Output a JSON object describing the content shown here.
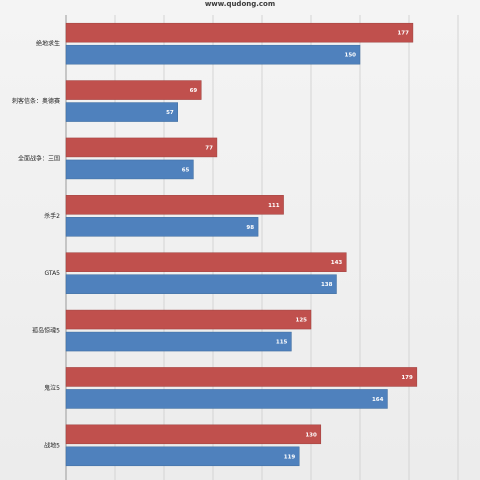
{
  "watermark": "www.qudong.com",
  "chart_data": {
    "type": "bar",
    "orientation": "horizontal",
    "categories": [
      "绝地求生",
      "刺客信条：奥德赛",
      "全面战争：三国",
      "杀手2",
      "GTA5",
      "孤岛惊魂5",
      "鬼泣5",
      "战地5"
    ],
    "series": [
      {
        "values": [
          177,
          69,
          77,
          111,
          143,
          125,
          179,
          130
        ],
        "color": "#c0504d"
      },
      {
        "values": [
          150,
          57,
          65,
          98,
          138,
          115,
          164,
          119
        ],
        "color": "#4f81bd"
      }
    ],
    "xlim": [
      0,
      200
    ],
    "grid": true,
    "legend": "none"
  }
}
